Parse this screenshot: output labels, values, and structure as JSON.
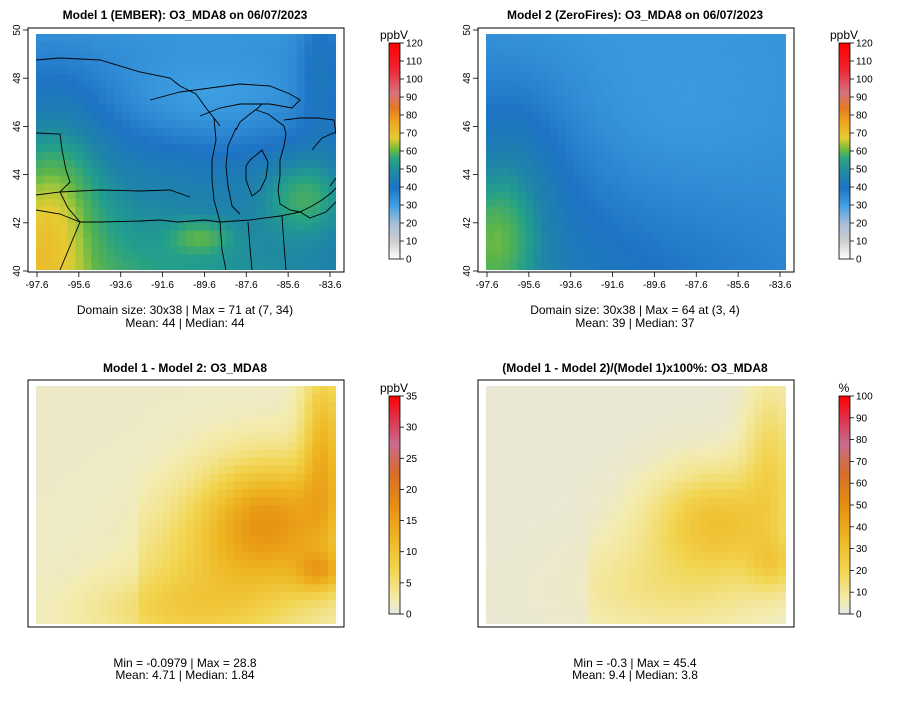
{
  "colors": {
    "background": "#ffffff",
    "axis": "#000000",
    "border": "#000000",
    "abs_scale": [
      "#ffffff",
      "#c9c9c9",
      "#9fb6d3",
      "#3b9be0",
      "#1f78c8",
      "#1f86a0",
      "#2aa38a",
      "#6fba3e",
      "#e0c93a",
      "#f0a020",
      "#e07a20",
      "#d8707a",
      "#f0202a",
      "#ff0000"
    ],
    "diff_scale": [
      "#e6e6e6",
      "#f2e8a0",
      "#f2d04a",
      "#eeb020",
      "#e88d12",
      "#d86a2a",
      "#c86a8a",
      "#e0304a",
      "#ff0000"
    ]
  },
  "panels": [
    {
      "title": "Model 1 (EMBER): O3_MDA8 on 06/07/2023",
      "unit_label": "ppbV",
      "colorbar_ticks": [
        "0",
        "10",
        "20",
        "30",
        "40",
        "50",
        "60",
        "70",
        "80",
        "90",
        "100",
        "110",
        "120"
      ],
      "stats_line1": "Domain size: 30x38 | Max = 71 at (7, 34)",
      "stats_line2": "Mean: 44 |  Median: 44",
      "x_ticks": [
        "-97.6",
        "-95.6",
        "-93.6",
        "-91.6",
        "-89.6",
        "-87.6",
        "-85.6",
        "-83.6"
      ],
      "y_ticks": [
        "40",
        "42",
        "44",
        "46",
        "48",
        "50"
      ],
      "has_axes": true
    },
    {
      "title": "Model 2 (ZeroFires): O3_MDA8 on 06/07/2023",
      "unit_label": "ppbV",
      "colorbar_ticks": [
        "0",
        "10",
        "20",
        "30",
        "40",
        "50",
        "60",
        "70",
        "80",
        "90",
        "100",
        "110",
        "120"
      ],
      "stats_line1": "Domain size: 30x38 | Max = 64 at (3, 4)",
      "stats_line2": "Mean: 39 |  Median: 37",
      "x_ticks": [
        "-97.6",
        "-95.6",
        "-93.6",
        "-91.6",
        "-89.6",
        "-87.6",
        "-85.6",
        "-83.6"
      ],
      "y_ticks": [
        "40",
        "42",
        "44",
        "46",
        "48",
        "50"
      ],
      "has_axes": true
    },
    {
      "title": "Model 1 - Model 2: O3_MDA8",
      "unit_label": "ppbV",
      "colorbar_ticks": [
        "0",
        "5",
        "10",
        "15",
        "20",
        "25",
        "30",
        "35"
      ],
      "stats_line1": "Min = -0.0979 | Max = 28.8",
      "stats_line2": "Mean: 4.71 |  Median: 1.84",
      "x_ticks": [],
      "y_ticks": [],
      "has_axes": false
    },
    {
      "title": "(Model 1 - Model 2)/(Model 1)x100%: O3_MDA8",
      "unit_label": "%",
      "colorbar_ticks": [
        "0",
        "10",
        "20",
        "30",
        "40",
        "50",
        "60",
        "70",
        "80",
        "90",
        "100"
      ],
      "stats_line1": "Min = -0.3 | Max = 45.4",
      "stats_line2": "Mean: 9.4 |  Median: 3.8",
      "x_ticks": [],
      "y_ticks": [],
      "has_axes": false
    }
  ],
  "chart_data": [
    {
      "type": "heatmap",
      "title": "Model 1 (EMBER): O3_MDA8 on 06/07/2023",
      "colorbar_label": "ppbV",
      "colorbar_range": [
        0,
        120
      ],
      "x_tick_labels": [
        "-97.6",
        "-95.6",
        "-93.6",
        "-91.6",
        "-89.6",
        "-87.6",
        "-85.6",
        "-83.6"
      ],
      "y_tick_labels": [
        "40",
        "42",
        "44",
        "46",
        "48",
        "50"
      ],
      "xlim": [
        -97.6,
        -83.6
      ],
      "ylim": [
        40,
        50
      ],
      "grid_size": [
        30,
        38
      ],
      "max": 71,
      "mean": 44,
      "median": 44
    },
    {
      "type": "heatmap",
      "title": "Model 2 (ZeroFires): O3_MDA8 on 06/07/2023",
      "colorbar_label": "ppbV",
      "colorbar_range": [
        0,
        120
      ],
      "x_tick_labels": [
        "-97.6",
        "-95.6",
        "-93.6",
        "-91.6",
        "-89.6",
        "-87.6",
        "-85.6",
        "-83.6"
      ],
      "y_tick_labels": [
        "40",
        "42",
        "44",
        "46",
        "48",
        "50"
      ],
      "xlim": [
        -97.6,
        -83.6
      ],
      "ylim": [
        40,
        50
      ],
      "grid_size": [
        30,
        38
      ],
      "max": 64,
      "mean": 39,
      "median": 37
    },
    {
      "type": "heatmap",
      "title": "Model 1 - Model 2: O3_MDA8",
      "colorbar_label": "ppbV",
      "colorbar_range": [
        0,
        35
      ],
      "min": -0.0979,
      "max": 28.8,
      "mean": 4.71,
      "median": 1.84
    },
    {
      "type": "heatmap",
      "title": "(Model 1 - Model 2)/(Model 1)x100%: O3_MDA8",
      "colorbar_label": "%",
      "colorbar_range": [
        0,
        100
      ],
      "min": -0.3,
      "max": 45.4,
      "mean": 9.4,
      "median": 3.8
    }
  ]
}
